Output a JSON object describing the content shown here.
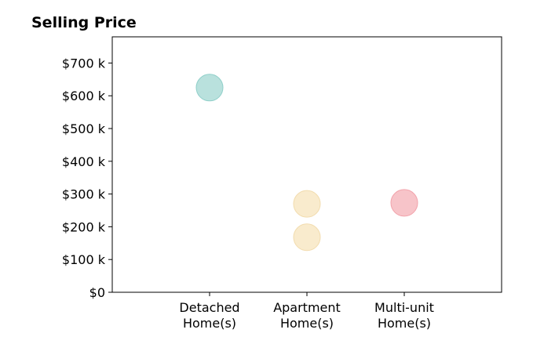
{
  "chart_data": {
    "type": "scatter",
    "title": "Selling Price",
    "xlabel": "",
    "ylabel": "",
    "categories": [
      [
        "Detached",
        "Home(s)"
      ],
      [
        "Apartment",
        "Home(s)"
      ],
      [
        "Multi-unit",
        "Home(s)"
      ]
    ],
    "y_ticks": [
      0,
      100,
      200,
      300,
      400,
      500,
      600,
      700
    ],
    "y_tick_labels": [
      "$0",
      "$100 k",
      "$200 k",
      "$300 k",
      "$400 k",
      "$500 k",
      "$600 k",
      "$700 k"
    ],
    "ylim": [
      0,
      780
    ],
    "xlim": [
      -1,
      3
    ],
    "grid": false,
    "points": [
      {
        "category_index": 0,
        "value": 625,
        "color": "#a8dad5"
      },
      {
        "category_index": 1,
        "value": 270,
        "color": "#f7e6c1"
      },
      {
        "category_index": 1,
        "value": 168,
        "color": "#f7e6c1"
      },
      {
        "category_index": 2,
        "value": 273,
        "color": "#f5b5bb"
      }
    ],
    "marker_edge_colors": [
      "#8fcfc9",
      "#f2dcae",
      "#f2a3ab"
    ]
  }
}
